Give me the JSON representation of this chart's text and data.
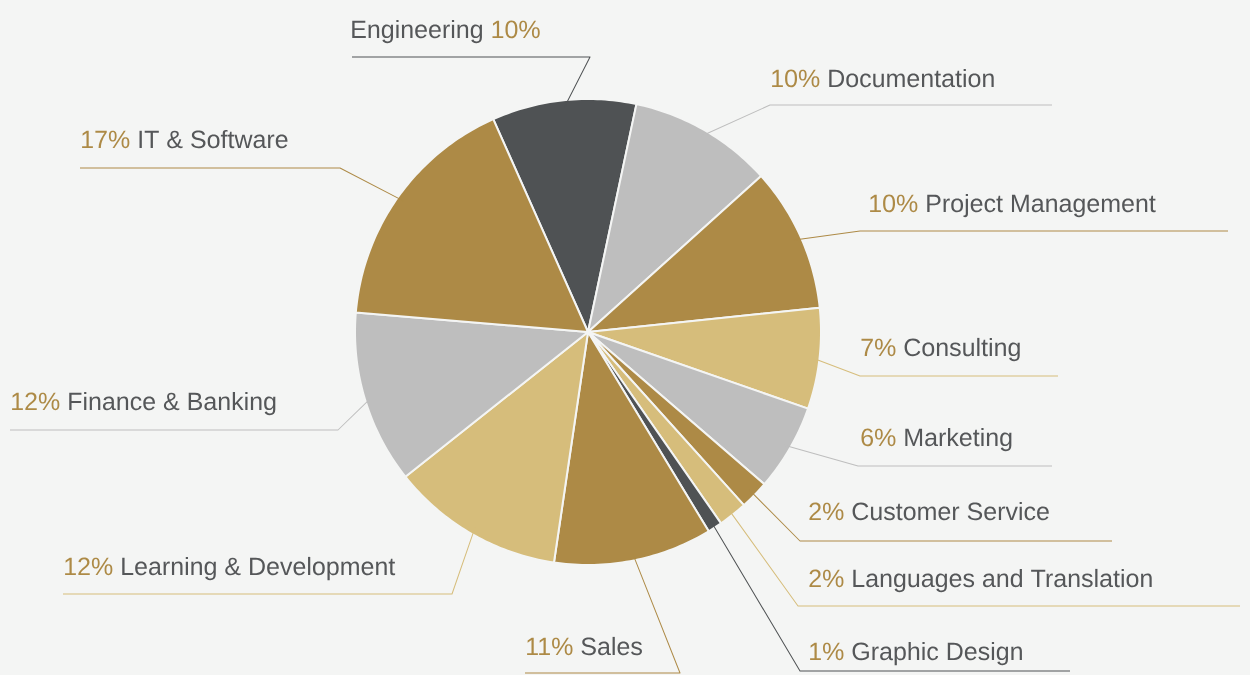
{
  "chart_data": {
    "type": "pie",
    "categories": [
      "Engineering",
      "Documentation",
      "Project Management",
      "Consulting",
      "Marketing",
      "Customer Service",
      "Languages and Translation",
      "Graphic Design",
      "Sales",
      "Learning & Development",
      "Finance & Banking",
      "IT & Software"
    ],
    "values": [
      10,
      10,
      10,
      7,
      6,
      2,
      2,
      1,
      11,
      12,
      12,
      17
    ],
    "value_labels": [
      "10%",
      "10%",
      "10%",
      "7%",
      "6%",
      "2%",
      "2%",
      "1%",
      "11%",
      "12%",
      "12%",
      "17%"
    ],
    "colors": [
      "#4f5254",
      "#bebebe",
      "#ad8a46",
      "#d6bd7b",
      "#bebebe",
      "#ad8a46",
      "#d6bd7b",
      "#4f5254",
      "#ad8a46",
      "#d6bd7b",
      "#bebebe",
      "#ad8a46"
    ]
  }
}
